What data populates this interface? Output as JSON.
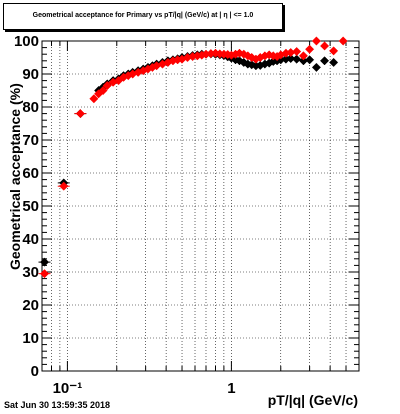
{
  "title": "Geometrical acceptance for Primary vs pT/|q| (GeV/c) at | η | <= 1.0",
  "timestamp": "Sat Jun 30 13:59:35 2018",
  "chart_data": {
    "type": "scatter",
    "title": "Geometrical acceptance for Primary vs pT/|q| (GeV/c) at | η | <= 1.0",
    "xlabel": "pT/|q| (GeV/c)",
    "ylabel": "Geometrical acceptance (%)",
    "xscale": "log",
    "xlim": [
      0.07,
      6.0
    ],
    "ylim": [
      0,
      100
    ],
    "grid": true,
    "xticks": [
      {
        "value": 0.1,
        "label": "10⁻¹"
      },
      {
        "value": 1,
        "label": "1"
      }
    ],
    "yticks": [
      0,
      10,
      20,
      30,
      40,
      50,
      60,
      70,
      80,
      90,
      100
    ],
    "colors": {
      "black": "#000000",
      "red": "#ff0000"
    },
    "series": [
      {
        "color": "#000000",
        "x": [
          0.0725,
          0.095,
          0.12,
          0.155,
          0.165,
          0.175,
          0.19,
          0.205,
          0.22,
          0.235,
          0.25,
          0.27,
          0.29,
          0.31,
          0.33,
          0.35,
          0.38,
          0.41,
          0.44,
          0.47,
          0.5,
          0.54,
          0.58,
          0.62,
          0.66,
          0.7,
          0.75,
          0.8,
          0.85,
          0.9,
          0.95,
          1.0,
          1.06,
          1.12,
          1.19,
          1.26,
          1.33,
          1.41,
          1.5,
          1.6,
          1.7,
          1.8,
          1.9,
          2.0,
          2.15,
          2.3,
          2.5,
          2.75,
          3.0,
          3.3,
          3.7,
          4.2
        ],
        "y": [
          33,
          57,
          78,
          85,
          86,
          87,
          88,
          88.5,
          89.5,
          90,
          90.5,
          91,
          91.5,
          92,
          92.5,
          93,
          93.5,
          94,
          94.3,
          94.6,
          95,
          95.3,
          95.6,
          95.8,
          96,
          96,
          96.1,
          96,
          95.8,
          95.6,
          95.2,
          94.8,
          94.3,
          94,
          93.5,
          93,
          92.8,
          92.5,
          92.6,
          93,
          93.3,
          93.8,
          94,
          94.3,
          94.5,
          94.7,
          94.5,
          94,
          94.3,
          92,
          94,
          93.5
        ]
      },
      {
        "color": "#ff0000",
        "x": [
          0.0725,
          0.095,
          0.12,
          0.145,
          0.155,
          0.165,
          0.175,
          0.19,
          0.205,
          0.22,
          0.235,
          0.25,
          0.27,
          0.29,
          0.31,
          0.33,
          0.35,
          0.38,
          0.41,
          0.44,
          0.47,
          0.5,
          0.54,
          0.58,
          0.62,
          0.66,
          0.7,
          0.75,
          0.8,
          0.85,
          0.9,
          0.95,
          1.0,
          1.06,
          1.12,
          1.19,
          1.26,
          1.33,
          1.41,
          1.5,
          1.6,
          1.7,
          1.8,
          1.9,
          2.0,
          2.15,
          2.3,
          2.5,
          2.75,
          3.0,
          3.3,
          3.7,
          4.2,
          4.8
        ],
        "y": [
          29.5,
          56,
          78,
          82.5,
          84,
          85,
          86.5,
          87.5,
          88,
          89,
          89.5,
          90,
          90.5,
          91,
          91.5,
          92,
          92.5,
          93,
          93.5,
          94,
          94.3,
          94.5,
          95,
          95.3,
          95.5,
          95.7,
          96,
          96.2,
          96.3,
          96.1,
          96,
          95.9,
          95.7,
          96,
          96.3,
          96,
          95.5,
          95,
          94.5,
          95,
          95.5,
          95.8,
          95.5,
          95.3,
          95.8,
          96.3,
          96.5,
          96.8,
          95.5,
          97.5,
          100,
          98.5,
          97,
          100
        ]
      }
    ]
  }
}
